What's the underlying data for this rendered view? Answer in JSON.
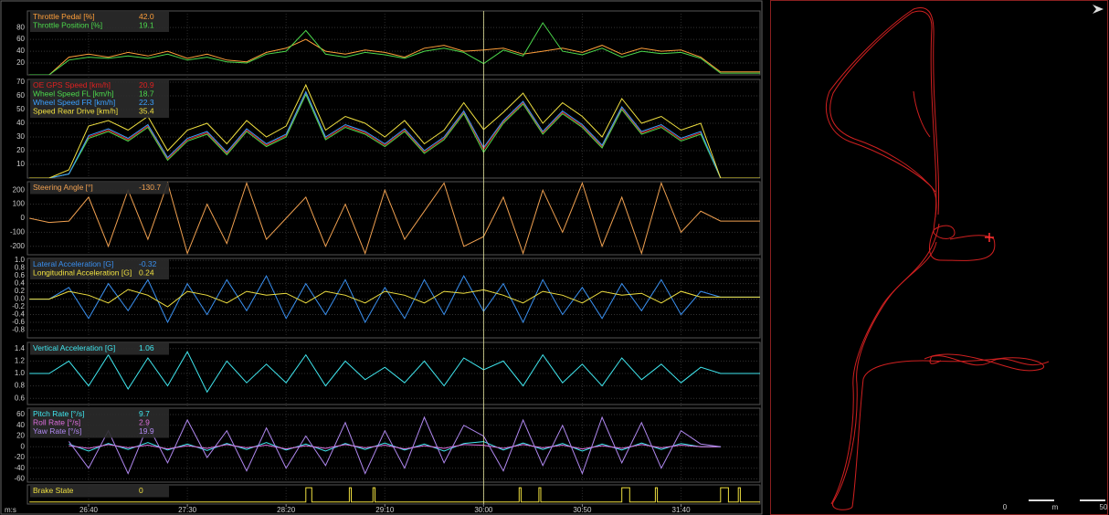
{
  "cursor_x": 1800,
  "chart_data": [
    {
      "type": "line",
      "xlim": [
        1569,
        1940
      ],
      "ylim": [
        0,
        108
      ],
      "yticks": [
        20,
        40,
        60,
        80
      ],
      "grid": true,
      "x": [
        1570,
        1580,
        1590,
        1600,
        1610,
        1620,
        1630,
        1640,
        1650,
        1660,
        1670,
        1680,
        1690,
        1700,
        1710,
        1720,
        1730,
        1740,
        1750,
        1760,
        1770,
        1780,
        1790,
        1800,
        1810,
        1820,
        1830,
        1840,
        1850,
        1860,
        1870,
        1880,
        1890,
        1900,
        1910,
        1920,
        1930,
        1940
      ],
      "series": [
        {
          "name": "Throttle Pedal [%]",
          "color": "#ff9f3a",
          "cursor_label": "42.0",
          "values": [
            0,
            0,
            30,
            35,
            30,
            38,
            32,
            40,
            28,
            35,
            25,
            22,
            38,
            45,
            60,
            40,
            35,
            42,
            38,
            30,
            45,
            50,
            40,
            42,
            45,
            35,
            40,
            45,
            38,
            50,
            35,
            45,
            40,
            42,
            30,
            5,
            5,
            5
          ]
        },
        {
          "name": "Throttle Position [%]",
          "color": "#4cd94c",
          "cursor_label": "19.1",
          "values": [
            0,
            0,
            25,
            30,
            28,
            32,
            28,
            35,
            25,
            30,
            22,
            20,
            35,
            40,
            75,
            35,
            30,
            38,
            34,
            28,
            40,
            45,
            38,
            19.1,
            42,
            32,
            88,
            40,
            34,
            45,
            30,
            40,
            36,
            38,
            28,
            3,
            3,
            3
          ]
        }
      ]
    },
    {
      "type": "line",
      "xlim": [
        1569,
        1940
      ],
      "ylim": [
        0,
        72
      ],
      "yticks": [
        10,
        20,
        30,
        40,
        50,
        60,
        70
      ],
      "grid": true,
      "x": [
        1570,
        1580,
        1590,
        1600,
        1610,
        1620,
        1630,
        1640,
        1650,
        1660,
        1670,
        1680,
        1690,
        1700,
        1710,
        1720,
        1730,
        1740,
        1750,
        1760,
        1770,
        1780,
        1790,
        1800,
        1810,
        1820,
        1830,
        1840,
        1850,
        1860,
        1870,
        1880,
        1890,
        1900,
        1910,
        1920,
        1930,
        1940
      ],
      "series": [
        {
          "name": "OE GPS Speed [km/h]",
          "color": "#e02020",
          "cursor_label": "20.9",
          "values": [
            0,
            0,
            3,
            30,
            35,
            28,
            38,
            14,
            28,
            33,
            18,
            35,
            24,
            31,
            62,
            29,
            38,
            33,
            24,
            35,
            19,
            29,
            48,
            20.9,
            41,
            55,
            33,
            48,
            38,
            23,
            51,
            33,
            38,
            28,
            33,
            0,
            0,
            0
          ]
        },
        {
          "name": "Wheel Speed FL [km/h]",
          "color": "#4cd94c",
          "cursor_label": "18.7",
          "values": [
            0,
            0,
            3,
            29,
            34,
            27,
            37,
            13,
            27,
            32,
            17,
            34,
            23,
            30,
            61,
            28,
            37,
            32,
            23,
            34,
            18,
            28,
            47,
            18.7,
            40,
            54,
            32,
            47,
            37,
            22,
            50,
            32,
            37,
            27,
            32,
            0,
            0,
            0
          ]
        },
        {
          "name": "Wheel Speed FR [km/h]",
          "color": "#3aa0ff",
          "cursor_label": "22.3",
          "values": [
            0,
            0,
            3,
            31,
            36,
            29,
            39,
            15,
            29,
            34,
            19,
            36,
            25,
            32,
            63,
            30,
            39,
            34,
            25,
            36,
            20,
            30,
            49,
            22.3,
            42,
            56,
            34,
            49,
            39,
            24,
            52,
            34,
            39,
            29,
            34,
            0,
            0,
            0
          ]
        },
        {
          "name": "Speed Rear Drive [km/h]",
          "color": "#f0e040",
          "cursor_label": "35.4",
          "values": [
            0,
            0,
            6,
            38,
            42,
            35,
            45,
            20,
            35,
            40,
            25,
            42,
            30,
            38,
            68,
            35,
            45,
            40,
            30,
            42,
            25,
            35,
            55,
            35.4,
            48,
            62,
            40,
            55,
            45,
            30,
            58,
            40,
            45,
            35,
            40,
            0,
            0,
            0
          ]
        }
      ]
    },
    {
      "type": "line",
      "xlim": [
        1569,
        1940
      ],
      "ylim": [
        -260,
        260
      ],
      "yticks": [
        200,
        100,
        0,
        -100,
        -200
      ],
      "grid": true,
      "x": [
        1570,
        1580,
        1590,
        1600,
        1610,
        1620,
        1630,
        1640,
        1650,
        1660,
        1670,
        1680,
        1690,
        1700,
        1710,
        1720,
        1730,
        1740,
        1750,
        1760,
        1770,
        1780,
        1790,
        1800,
        1810,
        1820,
        1830,
        1840,
        1850,
        1860,
        1870,
        1880,
        1890,
        1900,
        1910,
        1920,
        1930,
        1940
      ],
      "series": [
        {
          "name": "Steering Angle [°]",
          "color": "#f0a050",
          "cursor_label": "-130.7",
          "values": [
            0,
            -30,
            -20,
            150,
            -200,
            200,
            -150,
            250,
            -250,
            100,
            -180,
            250,
            -150,
            0,
            150,
            -200,
            100,
            -250,
            200,
            -150,
            50,
            250,
            -200,
            -130.7,
            150,
            -250,
            200,
            -100,
            250,
            -200,
            150,
            -250,
            250,
            -100,
            50,
            -20,
            -20,
            -20
          ]
        }
      ]
    },
    {
      "type": "line",
      "xlim": [
        1569,
        1940
      ],
      "ylim": [
        -1.0,
        1.05
      ],
      "yticks": [
        {
          "value": 1,
          "label": "1.0"
        },
        0.8,
        0.6,
        0.4,
        0.2,
        {
          "value": 0,
          "label": "0.0"
        },
        -0.2,
        -0.4,
        -0.6,
        -0.8
      ],
      "grid": true,
      "x": [
        1570,
        1580,
        1590,
        1600,
        1610,
        1620,
        1630,
        1640,
        1650,
        1660,
        1670,
        1680,
        1690,
        1700,
        1710,
        1720,
        1730,
        1740,
        1750,
        1760,
        1770,
        1780,
        1790,
        1800,
        1810,
        1820,
        1830,
        1840,
        1850,
        1860,
        1870,
        1880,
        1890,
        1900,
        1910,
        1920,
        1930,
        1940
      ],
      "series": [
        {
          "name": "Lateral Acceleration [G]",
          "color": "#3a90f0",
          "cursor_label": "-0.32",
          "values": [
            0,
            0,
            0.3,
            -0.5,
            0.4,
            -0.3,
            0.5,
            -0.6,
            0.4,
            -0.4,
            0.5,
            -0.3,
            0.6,
            -0.5,
            0.4,
            -0.4,
            0.5,
            -0.6,
            0.3,
            -0.5,
            0.5,
            -0.4,
            0.6,
            -0.32,
            0.4,
            -0.6,
            0.5,
            -0.4,
            0.3,
            -0.5,
            0.4,
            -0.3,
            0.5,
            -0.4,
            0.2,
            0.05,
            0.05,
            0.05
          ]
        },
        {
          "name": "Longitudinal Acceleration [G]",
          "color": "#f0e040",
          "cursor_label": "0.24",
          "values": [
            0,
            0,
            0.2,
            0.1,
            -0.1,
            0.25,
            0.1,
            -0.2,
            0.2,
            0.1,
            -0.1,
            0.2,
            0.1,
            0.15,
            -0.1,
            0.2,
            0.1,
            -0.1,
            0.2,
            0.1,
            -0.1,
            0.2,
            0.15,
            0.24,
            0.1,
            -0.1,
            0.2,
            0.1,
            -0.1,
            0.2,
            0.1,
            0.15,
            -0.1,
            0.2,
            0.05,
            0.05,
            0.05,
            0.05
          ]
        }
      ]
    },
    {
      "type": "line",
      "xlim": [
        1569,
        1940
      ],
      "ylim": [
        0.5,
        1.5
      ],
      "yticks": [
        1.4,
        1.2,
        {
          "value": 1,
          "label": "1.0"
        },
        0.8,
        0.6
      ],
      "grid": true,
      "x": [
        1570,
        1580,
        1590,
        1600,
        1610,
        1620,
        1630,
        1640,
        1650,
        1660,
        1670,
        1680,
        1690,
        1700,
        1710,
        1720,
        1730,
        1740,
        1750,
        1760,
        1770,
        1780,
        1790,
        1800,
        1810,
        1820,
        1830,
        1840,
        1850,
        1860,
        1870,
        1880,
        1890,
        1900,
        1910,
        1920,
        1930,
        1940
      ],
      "series": [
        {
          "name": "Vertical Acceleration [G]",
          "color": "#40e8f0",
          "cursor_label": "1.06",
          "values": [
            1,
            1,
            1.2,
            0.8,
            1.3,
            0.75,
            1.25,
            0.8,
            1.35,
            0.7,
            1.2,
            0.85,
            1.15,
            0.85,
            1.3,
            0.8,
            1.2,
            0.9,
            1.1,
            0.85,
            1.2,
            0.8,
            1.25,
            1.06,
            1.2,
            0.8,
            1.3,
            0.85,
            1.15,
            0.8,
            1.25,
            0.9,
            1.15,
            0.85,
            1.1,
            1,
            1,
            1
          ]
        }
      ]
    },
    {
      "type": "line",
      "xlim": [
        1569,
        1940
      ],
      "ylim": [
        -66,
        72
      ],
      "yticks": [
        60,
        40,
        20,
        0,
        -20,
        -40,
        -60
      ],
      "grid": true,
      "x": [
        1570,
        1580,
        1590,
        1600,
        1610,
        1620,
        1630,
        1640,
        1650,
        1660,
        1670,
        1680,
        1690,
        1700,
        1710,
        1720,
        1730,
        1740,
        1750,
        1760,
        1770,
        1780,
        1790,
        1800,
        1810,
        1820,
        1830,
        1840,
        1850,
        1860,
        1870,
        1880,
        1890,
        1900,
        1910,
        1920,
        1930,
        1940
      ],
      "series": [
        {
          "name": "Pitch Rate [°/s]",
          "color": "#40e8f0",
          "cursor_label": "9.7",
          "values": [
            null,
            null,
            5,
            -8,
            6,
            -5,
            8,
            -6,
            5,
            -7,
            6,
            -5,
            8,
            -6,
            5,
            -8,
            6,
            -5,
            7,
            -6,
            5,
            -8,
            6,
            9.7,
            -6,
            7,
            -5,
            6,
            -8,
            5,
            -6,
            7,
            -5,
            6,
            0,
            0,
            null,
            null
          ]
        },
        {
          "name": "Roll Rate [°/s]",
          "color": "#e070e0",
          "cursor_label": "2.9",
          "values": [
            null,
            null,
            2,
            -3,
            4,
            -2,
            3,
            -4,
            2,
            -3,
            4,
            -2,
            3,
            -4,
            2,
            -3,
            4,
            -2,
            3,
            -4,
            2,
            -3,
            4,
            2.9,
            -3,
            4,
            -2,
            3,
            -4,
            2,
            -3,
            4,
            -2,
            3,
            0,
            0,
            null,
            null
          ]
        },
        {
          "name": "Yaw Rate [°/s]",
          "color": "#b088f0",
          "cursor_label": "19.9",
          "values": [
            null,
            null,
            10,
            -40,
            30,
            -50,
            40,
            -30,
            50,
            -20,
            30,
            -45,
            35,
            -40,
            20,
            -35,
            45,
            -50,
            30,
            -40,
            55,
            -30,
            40,
            19.9,
            -45,
            50,
            -35,
            40,
            -50,
            55,
            -30,
            45,
            -40,
            30,
            5,
            0,
            null,
            null
          ]
        }
      ]
    },
    {
      "type": "line",
      "xlim": [
        1569,
        1940
      ],
      "ylim": [
        -0.15,
        1.2
      ],
      "x_label": "m:s",
      "xticks": [
        {
          "value": 1600,
          "label": "26:40"
        },
        {
          "value": 1650,
          "label": "27:30"
        },
        {
          "value": 1700,
          "label": "28:20"
        },
        {
          "value": 1750,
          "label": "29:10"
        },
        {
          "value": 1800,
          "label": "30:00"
        },
        {
          "value": 1850,
          "label": "30:50"
        },
        {
          "value": 1900,
          "label": "31:40"
        }
      ],
      "x": [
        1570,
        1710,
        1710,
        1713,
        1713,
        1732,
        1732,
        1733,
        1733,
        1744,
        1744,
        1745,
        1745,
        1818,
        1818,
        1819,
        1819,
        1828,
        1828,
        1829,
        1829,
        1870,
        1870,
        1874,
        1874,
        1887,
        1887,
        1888,
        1888,
        1920,
        1920,
        1924,
        1924,
        1929,
        1929,
        1930,
        1930,
        1940
      ],
      "series": [
        {
          "name": "Brake State",
          "color": "#f0e040",
          "cursor_label": "0",
          "values": [
            0,
            0,
            1,
            1,
            0,
            0,
            1,
            1,
            0,
            0,
            1,
            1,
            0,
            0,
            1,
            1,
            0,
            0,
            1,
            1,
            0,
            0,
            1,
            1,
            0,
            0,
            1,
            1,
            0,
            0,
            1,
            1,
            0,
            0,
            1,
            1,
            0,
            0
          ]
        }
      ]
    }
  ],
  "track_map": {
    "scale_min": 0,
    "scale_unit": "m",
    "scale_max": 50
  }
}
